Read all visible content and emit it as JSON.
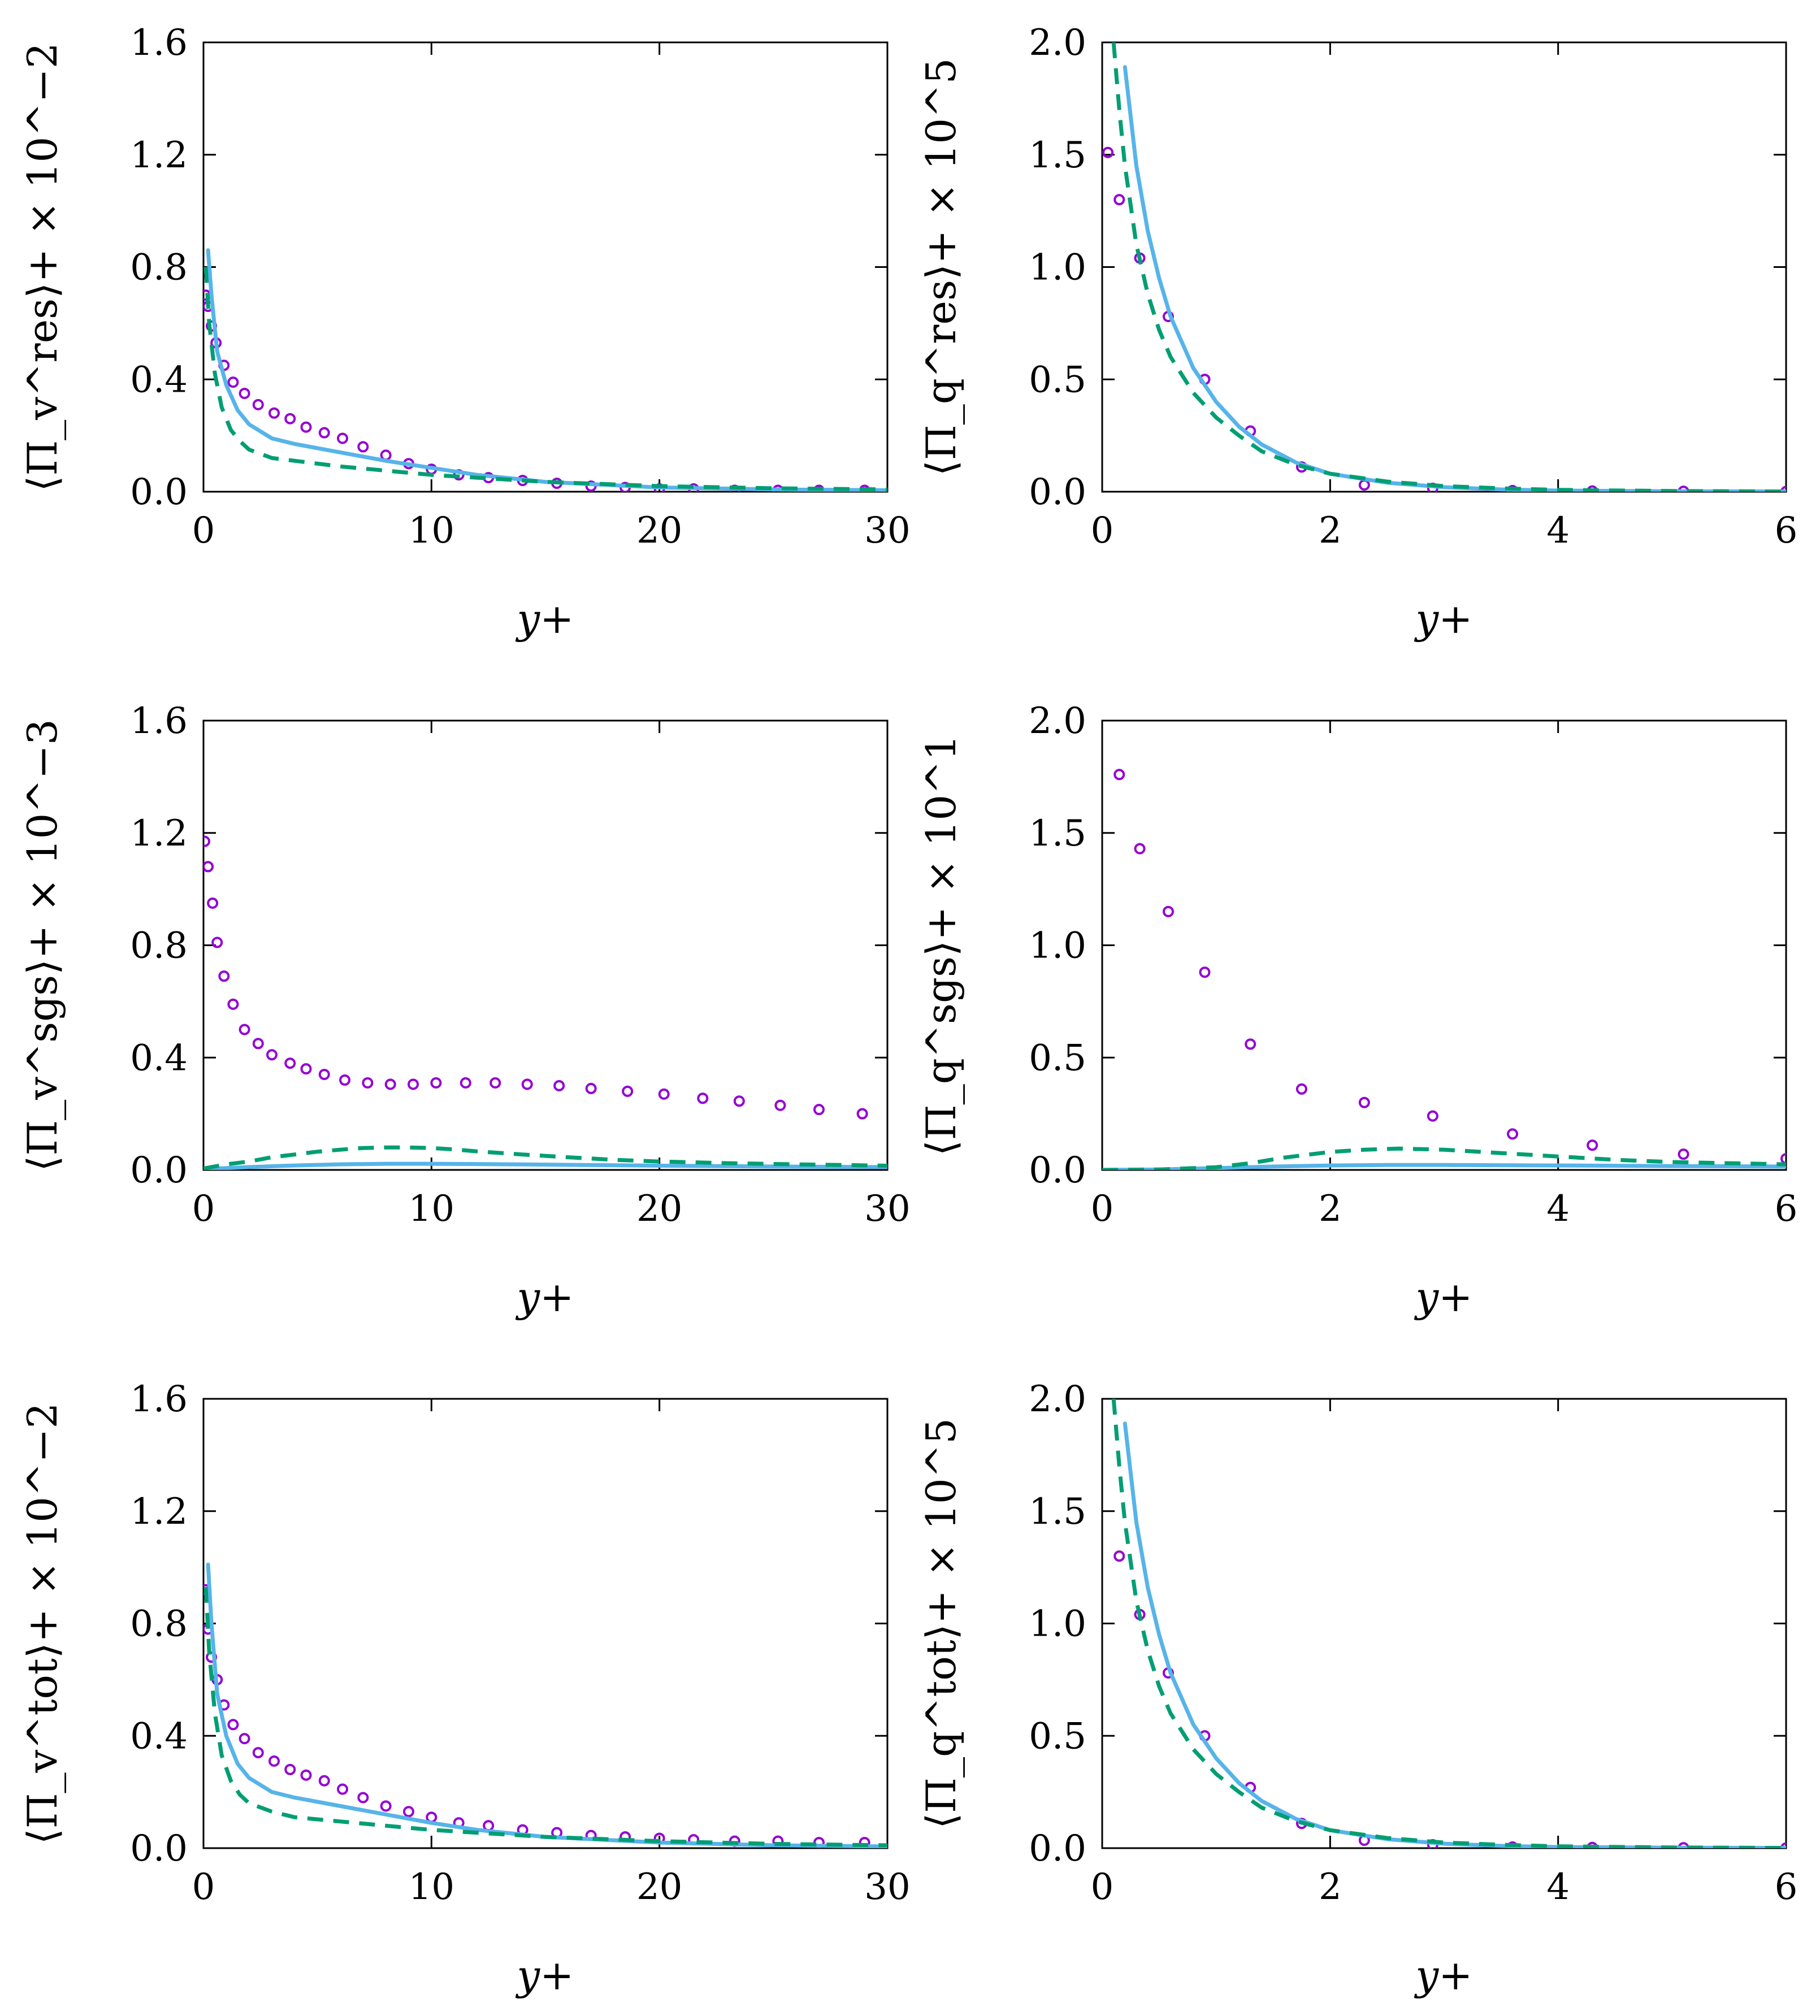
{
  "colors": {
    "circle_series": "#9400d3",
    "solid_series": "#56b4e9",
    "dashed_series": "#009e73"
  },
  "chart_data": [
    {
      "type": "line",
      "id": "res_v",
      "xlabel": "y+",
      "ylabel": "⟨Π_v^res⟩+ × 10^−2",
      "ylabel_parts": {
        "base": "⟨Π",
        "sub": "v",
        "sup": "res",
        "tail": "⟩",
        "plus": "+",
        "times": " × 10",
        "exp": "−2"
      },
      "xlim": [
        0,
        30
      ],
      "ylim": [
        0,
        1.6
      ],
      "xticks": [
        0,
        10,
        20,
        30
      ],
      "xtick_labels": [
        "0",
        "10",
        "20",
        "30"
      ],
      "yticks": [
        0,
        0.4,
        0.8,
        1.2,
        1.6
      ],
      "ytick_labels": [
        "0.0",
        "0.4",
        "0.8",
        "1.2",
        "1.6"
      ],
      "series": [
        {
          "name": "circles",
          "style": "circle",
          "x": [
            0.1,
            0.2,
            0.35,
            0.55,
            0.9,
            1.3,
            1.8,
            2.4,
            3.1,
            3.8,
            4.5,
            5.3,
            6.1,
            7.0,
            8.0,
            9.0,
            10.0,
            11.2,
            12.5,
            14.0,
            15.5,
            17.0,
            18.5,
            20.0,
            21.5,
            23.3,
            25.2,
            27.0,
            29.0
          ],
          "y": [
            0.7,
            0.66,
            0.59,
            0.53,
            0.45,
            0.39,
            0.35,
            0.31,
            0.28,
            0.26,
            0.23,
            0.21,
            0.19,
            0.16,
            0.13,
            0.1,
            0.08,
            0.06,
            0.05,
            0.04,
            0.03,
            0.02,
            0.015,
            0.01,
            0.01,
            0.005,
            0.005,
            0.005,
            0.005
          ]
        },
        {
          "name": "solid",
          "style": "solid",
          "x": [
            0.2,
            0.35,
            0.6,
            1.0,
            1.5,
            2.0,
            3.0,
            4.0,
            6.0,
            8.0,
            10.0,
            12.0,
            15.0,
            20.0,
            25.0,
            30.0
          ],
          "y": [
            0.86,
            0.7,
            0.5,
            0.38,
            0.29,
            0.24,
            0.19,
            0.17,
            0.14,
            0.11,
            0.085,
            0.06,
            0.035,
            0.015,
            0.008,
            0.005
          ]
        },
        {
          "name": "dashed",
          "style": "dashed",
          "x": [
            0.1,
            0.25,
            0.5,
            0.8,
            1.2,
            1.6,
            2.0,
            3.0,
            4.0,
            6.0,
            8.0,
            10.0,
            12.0,
            15.0,
            20.0,
            25.0,
            30.0
          ],
          "y": [
            0.8,
            0.6,
            0.42,
            0.3,
            0.22,
            0.18,
            0.15,
            0.12,
            0.11,
            0.09,
            0.075,
            0.06,
            0.05,
            0.035,
            0.02,
            0.012,
            0.008
          ]
        }
      ]
    },
    {
      "type": "line",
      "id": "res_q",
      "xlabel": "y+",
      "ylabel": "⟨Π_q^res⟩+ × 10^5",
      "ylabel_parts": {
        "base": "⟨Π",
        "sub": "q",
        "sup": "res",
        "tail": "⟩",
        "plus": "+",
        "times": " × 10",
        "exp": "5"
      },
      "xlim": [
        0,
        6
      ],
      "ylim": [
        0,
        2.0
      ],
      "xticks": [
        0,
        2,
        4,
        6
      ],
      "xtick_labels": [
        "0",
        "2",
        "4",
        "6"
      ],
      "yticks": [
        0,
        0.5,
        1.0,
        1.5,
        2.0
      ],
      "ytick_labels": [
        "0.0",
        "0.5",
        "1.0",
        "1.5",
        "2.0"
      ],
      "series": [
        {
          "name": "circles",
          "style": "circle",
          "x": [
            0.05,
            0.15,
            0.33,
            0.58,
            0.9,
            1.3,
            1.75,
            2.3,
            2.9,
            3.6,
            4.3,
            5.1,
            6.0
          ],
          "y": [
            1.51,
            1.3,
            1.04,
            0.78,
            0.5,
            0.27,
            0.11,
            0.03,
            0.015,
            0.005,
            0.003,
            0.002,
            0.001
          ]
        },
        {
          "name": "solid",
          "style": "solid",
          "x": [
            0.2,
            0.3,
            0.4,
            0.5,
            0.6,
            0.8,
            1.0,
            1.2,
            1.4,
            1.7,
            2.0,
            2.5,
            3.0,
            3.5,
            4.0,
            5.0,
            6.0
          ],
          "y": [
            1.89,
            1.45,
            1.16,
            0.95,
            0.78,
            0.55,
            0.4,
            0.29,
            0.21,
            0.13,
            0.08,
            0.04,
            0.02,
            0.01,
            0.005,
            0.002,
            0.001
          ]
        },
        {
          "name": "dashed",
          "style": "dashed",
          "x": [
            0.1,
            0.15,
            0.2,
            0.3,
            0.4,
            0.5,
            0.6,
            0.8,
            1.0,
            1.2,
            1.4,
            1.7,
            2.0,
            2.5,
            3.0,
            3.5,
            4.0,
            5.0,
            6.0
          ],
          "y": [
            2.0,
            1.7,
            1.45,
            1.1,
            0.88,
            0.72,
            0.6,
            0.44,
            0.33,
            0.25,
            0.18,
            0.12,
            0.08,
            0.045,
            0.025,
            0.015,
            0.008,
            0.003,
            0.001
          ]
        }
      ]
    },
    {
      "type": "line",
      "id": "sgs_v",
      "xlabel": "y+",
      "ylabel": "⟨Π_v^sgs⟩+ × 10^−3",
      "ylabel_parts": {
        "base": "⟨Π",
        "sub": "v",
        "sup": "sgs",
        "tail": "⟩",
        "plus": "+",
        "times": " × 10",
        "exp": "−3"
      },
      "xlim": [
        0,
        30
      ],
      "ylim": [
        0,
        1.6
      ],
      "xticks": [
        0,
        10,
        20,
        30
      ],
      "xtick_labels": [
        "0",
        "10",
        "20",
        "30"
      ],
      "yticks": [
        0,
        0.4,
        0.8,
        1.2,
        1.6
      ],
      "ytick_labels": [
        "0.0",
        "0.4",
        "0.8",
        "1.2",
        "1.6"
      ],
      "series": [
        {
          "name": "circles",
          "style": "circle",
          "x": [
            0.05,
            0.2,
            0.4,
            0.6,
            0.9,
            1.3,
            1.8,
            2.4,
            3.0,
            3.8,
            4.5,
            5.3,
            6.2,
            7.2,
            8.2,
            9.2,
            10.2,
            11.5,
            12.8,
            14.2,
            15.6,
            17.0,
            18.6,
            20.2,
            21.9,
            23.5,
            25.3,
            27.0,
            28.9
          ],
          "y": [
            1.17,
            1.08,
            0.95,
            0.81,
            0.69,
            0.59,
            0.5,
            0.45,
            0.41,
            0.38,
            0.36,
            0.34,
            0.32,
            0.31,
            0.305,
            0.305,
            0.31,
            0.31,
            0.31,
            0.305,
            0.3,
            0.29,
            0.28,
            0.27,
            0.255,
            0.245,
            0.23,
            0.215,
            0.2
          ]
        },
        {
          "name": "solid",
          "style": "solid",
          "x": [
            0,
            2,
            4,
            6,
            8,
            10,
            12,
            15,
            20,
            25,
            30
          ],
          "y": [
            0.003,
            0.01,
            0.016,
            0.02,
            0.022,
            0.022,
            0.021,
            0.019,
            0.015,
            0.012,
            0.01
          ]
        },
        {
          "name": "dashed",
          "style": "dashed",
          "x": [
            0,
            1,
            2,
            3,
            4,
            5,
            6,
            7,
            8,
            9,
            10,
            11,
            12,
            14,
            16,
            18,
            20,
            23,
            26,
            30
          ],
          "y": [
            0.005,
            0.02,
            0.03,
            0.045,
            0.055,
            0.065,
            0.072,
            0.078,
            0.08,
            0.08,
            0.078,
            0.073,
            0.066,
            0.055,
            0.045,
            0.036,
            0.03,
            0.024,
            0.02,
            0.015
          ]
        }
      ]
    },
    {
      "type": "line",
      "id": "sgs_q",
      "xlabel": "y+",
      "ylabel": "⟨Π_q^sgs⟩+ × 10^1",
      "ylabel_parts": {
        "base": "⟨Π",
        "sub": "q",
        "sup": "sgs",
        "tail": "⟩",
        "plus": "+",
        "times": " × 10",
        "exp": "1"
      },
      "xlim": [
        0,
        6
      ],
      "ylim": [
        0,
        2.0
      ],
      "xticks": [
        0,
        2,
        4,
        6
      ],
      "xtick_labels": [
        "0",
        "2",
        "4",
        "6"
      ],
      "yticks": [
        0,
        0.5,
        1.0,
        1.5,
        2.0
      ],
      "ytick_labels": [
        "0.0",
        "0.5",
        "1.0",
        "1.5",
        "2.0"
      ],
      "series": [
        {
          "name": "circles",
          "style": "circle",
          "x": [
            0.15,
            0.33,
            0.58,
            0.9,
            1.3,
            1.75,
            2.3,
            2.9,
            3.6,
            4.3,
            5.1,
            6.0
          ],
          "y": [
            1.76,
            1.43,
            1.15,
            0.88,
            0.56,
            0.36,
            0.3,
            0.24,
            0.16,
            0.11,
            0.07,
            0.05
          ]
        },
        {
          "name": "solid",
          "style": "solid",
          "x": [
            0,
            0.5,
            1.0,
            1.5,
            2.0,
            2.5,
            3.0,
            4.0,
            5.0,
            6.0
          ],
          "y": [
            0,
            0.002,
            0.008,
            0.015,
            0.02,
            0.022,
            0.022,
            0.02,
            0.017,
            0.015
          ]
        },
        {
          "name": "dashed",
          "style": "dashed",
          "x": [
            0,
            0.5,
            1.0,
            1.3,
            1.6,
            2.0,
            2.3,
            2.6,
            3.0,
            3.5,
            4.0,
            4.5,
            5.0,
            5.5,
            6.0
          ],
          "y": [
            0,
            0.002,
            0.012,
            0.03,
            0.055,
            0.08,
            0.09,
            0.095,
            0.09,
            0.075,
            0.06,
            0.045,
            0.035,
            0.03,
            0.025
          ]
        }
      ]
    },
    {
      "type": "line",
      "id": "tot_v",
      "xlabel": "y+",
      "ylabel": "⟨Π_v^tot⟩+ × 10^−2",
      "ylabel_parts": {
        "base": "⟨Π",
        "sub": "v",
        "sup": "tot",
        "tail": "⟩",
        "plus": "+",
        "times": " × 10",
        "exp": "−2"
      },
      "xlim": [
        0,
        30
      ],
      "ylim": [
        0,
        1.6
      ],
      "xticks": [
        0,
        10,
        20,
        30
      ],
      "xtick_labels": [
        "0",
        "10",
        "20",
        "30"
      ],
      "yticks": [
        0,
        0.4,
        0.8,
        1.2,
        1.6
      ],
      "ytick_labels": [
        "0.0",
        "0.4",
        "0.8",
        "1.2",
        "1.6"
      ],
      "series": [
        {
          "name": "circles",
          "style": "circle",
          "x": [
            0.1,
            0.2,
            0.35,
            0.6,
            0.9,
            1.3,
            1.8,
            2.4,
            3.1,
            3.8,
            4.5,
            5.3,
            6.1,
            7.0,
            8.0,
            9.0,
            10.0,
            11.2,
            12.5,
            14.0,
            15.5,
            17.0,
            18.5,
            20.0,
            21.5,
            23.3,
            25.2,
            27.0,
            29.0
          ],
          "y": [
            0.92,
            0.78,
            0.68,
            0.6,
            0.51,
            0.44,
            0.39,
            0.34,
            0.31,
            0.28,
            0.26,
            0.24,
            0.21,
            0.18,
            0.15,
            0.13,
            0.11,
            0.09,
            0.08,
            0.065,
            0.055,
            0.045,
            0.04,
            0.035,
            0.03,
            0.025,
            0.025,
            0.02,
            0.02
          ]
        },
        {
          "name": "solid",
          "style": "solid",
          "x": [
            0.2,
            0.35,
            0.6,
            1.0,
            1.5,
            2.0,
            3.0,
            4.0,
            6.0,
            8.0,
            10.0,
            12.0,
            15.0,
            20.0,
            25.0,
            30.0
          ],
          "y": [
            1.01,
            0.8,
            0.55,
            0.4,
            0.3,
            0.25,
            0.2,
            0.18,
            0.15,
            0.12,
            0.09,
            0.065,
            0.04,
            0.02,
            0.01,
            0.006
          ]
        },
        {
          "name": "dashed",
          "style": "dashed",
          "x": [
            0.1,
            0.25,
            0.5,
            0.8,
            1.2,
            1.6,
            2.0,
            3.0,
            4.0,
            6.0,
            8.0,
            10.0,
            12.0,
            15.0,
            20.0,
            25.0,
            30.0
          ],
          "y": [
            0.93,
            0.7,
            0.48,
            0.33,
            0.24,
            0.19,
            0.16,
            0.13,
            0.11,
            0.095,
            0.08,
            0.065,
            0.055,
            0.04,
            0.025,
            0.015,
            0.01
          ]
        }
      ]
    },
    {
      "type": "line",
      "id": "tot_q",
      "xlabel": "y+",
      "ylabel": "⟨Π_q^tot⟩+ × 10^5",
      "ylabel_parts": {
        "base": "⟨Π",
        "sub": "q",
        "sup": "tot",
        "tail": "⟩",
        "plus": "+",
        "times": " × 10",
        "exp": "5"
      },
      "xlim": [
        0,
        6
      ],
      "ylim": [
        0,
        2.0
      ],
      "xticks": [
        0,
        2,
        4,
        6
      ],
      "xtick_labels": [
        "0",
        "2",
        "4",
        "6"
      ],
      "yticks": [
        0,
        0.5,
        1.0,
        1.5,
        2.0
      ],
      "ytick_labels": [
        "0.0",
        "0.5",
        "1.0",
        "1.5",
        "2.0"
      ],
      "series": [
        {
          "name": "circles",
          "style": "circle",
          "x": [
            0.15,
            0.33,
            0.58,
            0.9,
            1.3,
            1.75,
            2.3,
            2.9,
            3.6,
            4.3,
            5.1,
            6.0
          ],
          "y": [
            1.3,
            1.04,
            0.78,
            0.5,
            0.27,
            0.11,
            0.035,
            0.015,
            0.005,
            0.003,
            0.002,
            0.001
          ]
        },
        {
          "name": "solid",
          "style": "solid",
          "x": [
            0.2,
            0.3,
            0.4,
            0.5,
            0.6,
            0.8,
            1.0,
            1.2,
            1.4,
            1.7,
            2.0,
            2.5,
            3.0,
            3.5,
            4.0,
            5.0,
            6.0
          ],
          "y": [
            1.89,
            1.45,
            1.16,
            0.95,
            0.78,
            0.55,
            0.4,
            0.29,
            0.21,
            0.13,
            0.08,
            0.04,
            0.02,
            0.01,
            0.005,
            0.002,
            0.001
          ]
        },
        {
          "name": "dashed",
          "style": "dashed",
          "x": [
            0.1,
            0.15,
            0.2,
            0.3,
            0.4,
            0.5,
            0.6,
            0.8,
            1.0,
            1.2,
            1.4,
            1.7,
            2.0,
            2.5,
            3.0,
            3.5,
            4.0,
            5.0,
            6.0
          ],
          "y": [
            2.0,
            1.7,
            1.45,
            1.1,
            0.88,
            0.72,
            0.6,
            0.44,
            0.33,
            0.25,
            0.18,
            0.12,
            0.08,
            0.045,
            0.025,
            0.015,
            0.008,
            0.003,
            0.001
          ]
        }
      ]
    }
  ]
}
